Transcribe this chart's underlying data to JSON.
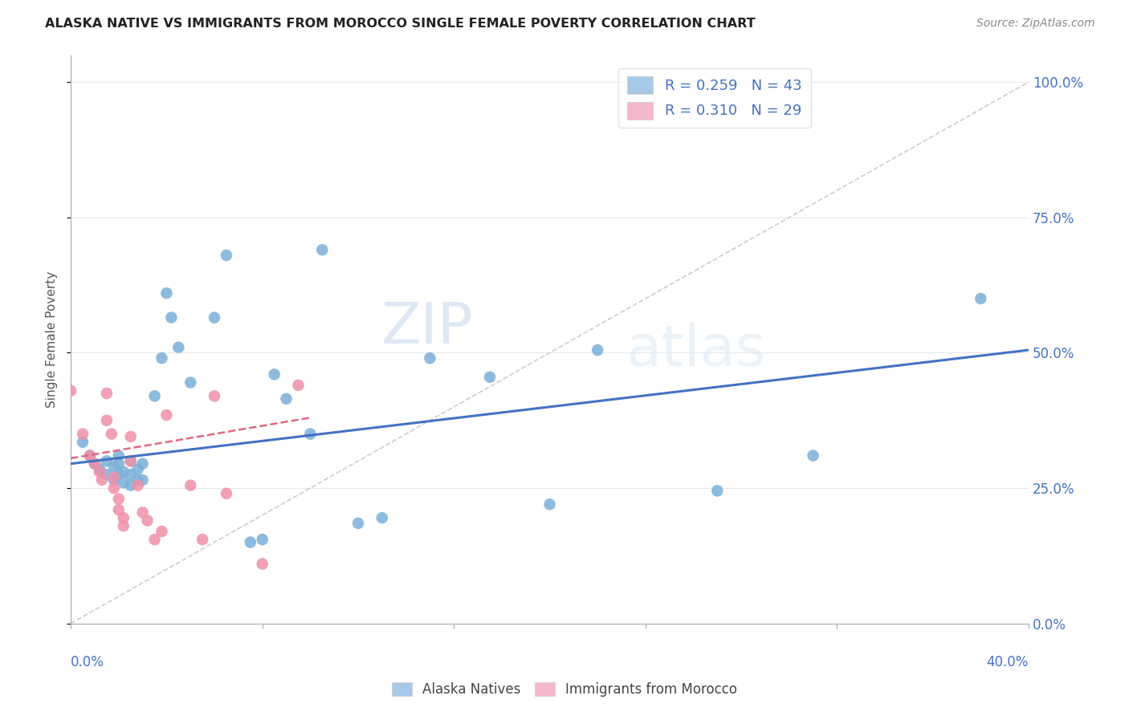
{
  "title": "ALASKA NATIVE VS IMMIGRANTS FROM MOROCCO SINGLE FEMALE POVERTY CORRELATION CHART",
  "source": "Source: ZipAtlas.com",
  "ylabel": "Single Female Poverty",
  "yticks": [
    "0.0%",
    "25.0%",
    "50.0%",
    "75.0%",
    "100.0%"
  ],
  "ytick_vals": [
    0.0,
    0.25,
    0.5,
    0.75,
    1.0
  ],
  "xlim": [
    0.0,
    0.4
  ],
  "ylim": [
    0.0,
    1.05
  ],
  "watermark_zip": "ZIP",
  "watermark_atlas": "atlas",
  "legend_entries": [
    {
      "label": "R = 0.259   N = 43",
      "color": "#a8c8e8"
    },
    {
      "label": "R = 0.310   N = 29",
      "color": "#f4b8cc"
    }
  ],
  "legend_bottom": [
    "Alaska Natives",
    "Immigrants from Morocco"
  ],
  "blue_scatter_color": "#7ab0d8",
  "pink_scatter_color": "#f090a8",
  "blue_line_color": "#4472c4",
  "pink_line_color": "#e06880",
  "diag_line_color": "#c8c8c8",
  "alaska_x": [
    0.005,
    0.008,
    0.01,
    0.012,
    0.015,
    0.015,
    0.018,
    0.018,
    0.02,
    0.02,
    0.02,
    0.022,
    0.022,
    0.025,
    0.025,
    0.025,
    0.028,
    0.028,
    0.03,
    0.03,
    0.035,
    0.038,
    0.04,
    0.042,
    0.045,
    0.05,
    0.06,
    0.065,
    0.075,
    0.08,
    0.085,
    0.09,
    0.1,
    0.105,
    0.12,
    0.13,
    0.15,
    0.175,
    0.2,
    0.22,
    0.27,
    0.31,
    0.38
  ],
  "alaska_y": [
    0.335,
    0.31,
    0.295,
    0.285,
    0.3,
    0.275,
    0.29,
    0.265,
    0.31,
    0.295,
    0.275,
    0.26,
    0.28,
    0.3,
    0.275,
    0.255,
    0.285,
    0.265,
    0.295,
    0.265,
    0.42,
    0.49,
    0.61,
    0.565,
    0.51,
    0.445,
    0.565,
    0.68,
    0.15,
    0.155,
    0.46,
    0.415,
    0.35,
    0.69,
    0.185,
    0.195,
    0.49,
    0.455,
    0.22,
    0.505,
    0.245,
    0.31,
    0.6
  ],
  "morocco_x": [
    0.0,
    0.005,
    0.008,
    0.01,
    0.012,
    0.013,
    0.015,
    0.015,
    0.017,
    0.018,
    0.018,
    0.02,
    0.02,
    0.022,
    0.022,
    0.025,
    0.025,
    0.028,
    0.03,
    0.032,
    0.035,
    0.038,
    0.04,
    0.05,
    0.055,
    0.06,
    0.065,
    0.08,
    0.095
  ],
  "morocco_y": [
    0.43,
    0.35,
    0.31,
    0.295,
    0.28,
    0.265,
    0.425,
    0.375,
    0.35,
    0.27,
    0.25,
    0.23,
    0.21,
    0.195,
    0.18,
    0.345,
    0.3,
    0.255,
    0.205,
    0.19,
    0.155,
    0.17,
    0.385,
    0.255,
    0.155,
    0.42,
    0.24,
    0.11,
    0.44
  ],
  "blue_trend_x": [
    0.0,
    0.4
  ],
  "blue_trend_y": [
    0.295,
    0.505
  ],
  "pink_trend_x": [
    0.0,
    0.1
  ],
  "pink_trend_y": [
    0.305,
    0.38
  ],
  "background_color": "#ffffff",
  "grid_color": "#e8e8e8",
  "title_color": "#222222",
  "source_color": "#888888",
  "axis_label_color": "#4472c4",
  "ylabel_color": "#555555"
}
